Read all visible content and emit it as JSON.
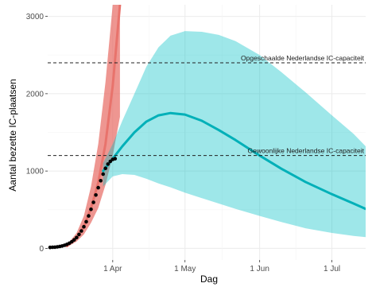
{
  "chart_data": {
    "type": "line",
    "title": "",
    "xlabel": "Dag",
    "ylabel": "Aantal bezette IC-plaatsen",
    "x_range": [
      "2020-03-05",
      "2020-07-15"
    ],
    "ylim": [
      -150,
      3150
    ],
    "x_ticks": [
      {
        "date": "2020-04-01",
        "label": "1 Apr"
      },
      {
        "date": "2020-05-01",
        "label": "1 May"
      },
      {
        "date": "2020-06-01",
        "label": "1 Jun"
      },
      {
        "date": "2020-07-01",
        "label": "1 Jul"
      }
    ],
    "y_ticks": [
      0,
      1000,
      2000,
      3000
    ],
    "grid": true,
    "reference_lines": [
      {
        "y": 2400,
        "label": "Opgeschaalde Nederlandse IC-capaciteit"
      },
      {
        "y": 1200,
        "label": "Gewoonlijke Nederlandse IC-capaciteit"
      }
    ],
    "series": [
      {
        "kind": "band",
        "color": "#e8736c",
        "x": [
          "2020-03-13",
          "2020-03-17",
          "2020-03-20",
          "2020-03-23",
          "2020-03-26",
          "2020-03-29",
          "2020-04-01",
          "2020-04-04"
        ],
        "lower": [
          15,
          90,
          180,
          330,
          520,
          820,
          1200,
          1700
        ],
        "upper": [
          45,
          200,
          420,
          800,
          1350,
          2150,
          3150,
          3150
        ]
      },
      {
        "kind": "line",
        "color": "#e8736c",
        "x": [
          "2020-03-13",
          "2020-03-17",
          "2020-03-20",
          "2020-03-23",
          "2020-03-26",
          "2020-03-29",
          "2020-04-01",
          "2020-04-04"
        ],
        "y": [
          30,
          140,
          280,
          520,
          850,
          1350,
          2100,
          3150
        ]
      },
      {
        "kind": "band",
        "color": "#00bfc4",
        "x": [
          "2020-03-28",
          "2020-04-01",
          "2020-04-05",
          "2020-04-10",
          "2020-04-15",
          "2020-04-20",
          "2020-04-25",
          "2020-05-01",
          "2020-05-08",
          "2020-05-15",
          "2020-05-22",
          "2020-06-01",
          "2020-06-10",
          "2020-06-20",
          "2020-07-01",
          "2020-07-10",
          "2020-07-15"
        ],
        "lower": [
          800,
          930,
          960,
          950,
          900,
          840,
          790,
          720,
          650,
          580,
          510,
          420,
          340,
          260,
          200,
          160,
          145
        ],
        "upper": [
          1100,
          1350,
          1650,
          2000,
          2350,
          2600,
          2750,
          2810,
          2800,
          2760,
          2680,
          2500,
          2280,
          2020,
          1720,
          1480,
          1320
        ]
      },
      {
        "kind": "line",
        "color": "#00b0b8",
        "x": [
          "2020-03-28",
          "2020-04-01",
          "2020-04-05",
          "2020-04-10",
          "2020-04-15",
          "2020-04-20",
          "2020-04-25",
          "2020-05-01",
          "2020-05-08",
          "2020-05-15",
          "2020-05-22",
          "2020-06-01",
          "2020-06-10",
          "2020-06-20",
          "2020-07-01",
          "2020-07-10",
          "2020-07-15"
        ],
        "y": [
          1000,
          1160,
          1320,
          1500,
          1640,
          1720,
          1750,
          1730,
          1650,
          1530,
          1400,
          1200,
          1030,
          860,
          700,
          580,
          510
        ]
      },
      {
        "kind": "points",
        "color": "#000000",
        "x": [
          "2020-03-06",
          "2020-03-07",
          "2020-03-08",
          "2020-03-09",
          "2020-03-10",
          "2020-03-11",
          "2020-03-12",
          "2020-03-13",
          "2020-03-14",
          "2020-03-15",
          "2020-03-16",
          "2020-03-17",
          "2020-03-18",
          "2020-03-19",
          "2020-03-20",
          "2020-03-21",
          "2020-03-22",
          "2020-03-23",
          "2020-03-24",
          "2020-03-25",
          "2020-03-26",
          "2020-03-27",
          "2020-03-28",
          "2020-03-29",
          "2020-03-30",
          "2020-03-31",
          "2020-04-01",
          "2020-04-02"
        ],
        "y": [
          12,
          14,
          16,
          20,
          25,
          31,
          40,
          52,
          67,
          86,
          110,
          140,
          180,
          225,
          280,
          345,
          420,
          505,
          595,
          690,
          785,
          875,
          960,
          1035,
          1090,
          1125,
          1150,
          1160
        ]
      }
    ]
  }
}
